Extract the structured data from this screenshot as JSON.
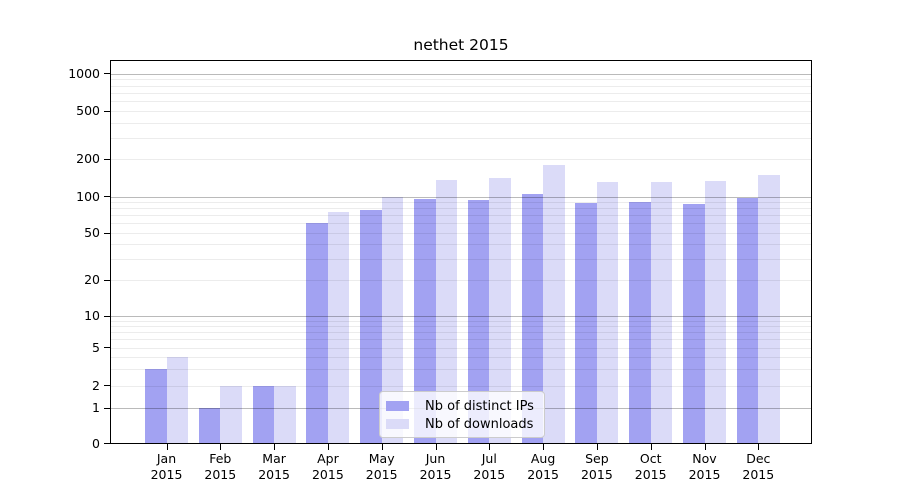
{
  "title": "nethet 2015",
  "chart_data": {
    "type": "bar",
    "title": "nethet 2015",
    "categories": [
      "Jan 2015",
      "Feb 2015",
      "Mar 2015",
      "Apr 2015",
      "May 2015",
      "Jun 2015",
      "Jul 2015",
      "Aug 2015",
      "Sep 2015",
      "Oct 2015",
      "Nov 2015",
      "Dec 2015"
    ],
    "series": [
      {
        "name": "Nb of distinct IPs",
        "color": "#a2a2f2",
        "values": [
          3,
          1,
          2,
          60,
          77,
          95,
          94,
          105,
          88,
          90,
          86,
          98
        ]
      },
      {
        "name": "Nb of downloads",
        "color": "#dbdbf8",
        "values": [
          4,
          2,
          2,
          75,
          100,
          135,
          140,
          180,
          130,
          130,
          132,
          150
        ]
      }
    ],
    "yscale": "symlog",
    "yticks": [
      0,
      1,
      2,
      5,
      10,
      20,
      50,
      100,
      200,
      500,
      1000
    ],
    "ylim": [
      0,
      1300
    ],
    "grid": "horizontal major+minor",
    "legend_position": "lower center",
    "bar_grouping": "paired side-by-side per month"
  },
  "legend": {
    "items": [
      {
        "label": "Nb of distinct IPs"
      },
      {
        "label": "Nb of downloads"
      }
    ]
  }
}
